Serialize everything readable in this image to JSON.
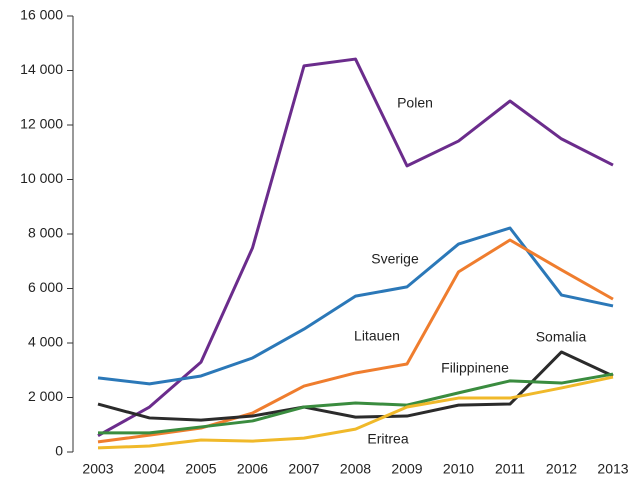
{
  "chart_data": {
    "type": "line",
    "categories": [
      "2003",
      "2004",
      "2005",
      "2006",
      "2007",
      "2008",
      "2009",
      "2010",
      "2011",
      "2012",
      "2013"
    ],
    "series": [
      {
        "name": "Polen",
        "color": "#6b2c8c",
        "values": [
          600,
          1650,
          3300,
          7490,
          14170,
          14420,
          10500,
          11410,
          12880,
          11490,
          10530
        ]
      },
      {
        "name": "Sverige",
        "color": "#2b78b8",
        "values": [
          2720,
          2500,
          2790,
          3450,
          4510,
          5720,
          6060,
          7630,
          8220,
          5760,
          5360
        ]
      },
      {
        "name": "Litauen",
        "color": "#ef7d2e",
        "values": [
          370,
          620,
          880,
          1430,
          2420,
          2900,
          3230,
          6610,
          7780,
          6680,
          5610
        ]
      },
      {
        "name": "Somalia",
        "color": "#2b2b2b",
        "values": [
          1760,
          1250,
          1170,
          1320,
          1650,
          1280,
          1320,
          1720,
          1760,
          3670,
          2790
        ]
      },
      {
        "name": "Filippinene",
        "color": "#3a8c3f",
        "values": [
          700,
          700,
          920,
          1140,
          1650,
          1800,
          1720,
          2170,
          2610,
          2530,
          2860
        ]
      },
      {
        "name": "Eritrea",
        "color": "#f0b92a",
        "values": [
          150,
          220,
          440,
          400,
          510,
          840,
          1650,
          1980,
          1980,
          2350,
          2750
        ]
      }
    ],
    "ylim": [
      0,
      16000
    ],
    "yticks": [
      0,
      {
        "value": 2000,
        "label": "2 000"
      },
      {
        "value": 4000,
        "label": "4 000"
      },
      {
        "value": 6000,
        "label": "6 000"
      },
      {
        "value": 8000,
        "label": "8 000"
      },
      {
        "value": 10000,
        "label": "10 000"
      },
      {
        "value": 12000,
        "label": "12 000"
      },
      {
        "value": 14000,
        "label": "14 000"
      },
      {
        "value": 16000,
        "label": "16 000"
      }
    ]
  }
}
